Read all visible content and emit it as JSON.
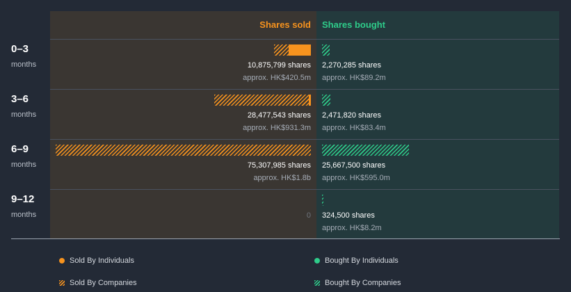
{
  "chart_data": {
    "type": "bar",
    "headers": {
      "sold": "Shares sold",
      "bought": "Shares bought"
    },
    "categories": [
      {
        "period": "0–3",
        "unit": "months"
      },
      {
        "period": "3–6",
        "unit": "months"
      },
      {
        "period": "6–9",
        "unit": "months"
      },
      {
        "period": "9–12",
        "unit": "months"
      }
    ],
    "sold": [
      {
        "shares_label": "10,875,799 shares",
        "value_label": "approx. HK$420.5m",
        "individuals": 6500000,
        "companies": 4375799
      },
      {
        "shares_label": "28,477,543 shares",
        "value_label": "approx. HK$931.3m",
        "individuals": 600000,
        "companies": 27877543
      },
      {
        "shares_label": "75,307,985 shares",
        "value_label": "approx. HK$1.8b",
        "individuals": 0,
        "companies": 75307985
      },
      {
        "shares_label": "",
        "value_label": "",
        "zero_label": "0",
        "individuals": 0,
        "companies": 0
      }
    ],
    "bought": [
      {
        "shares_label": "2,270,285 shares",
        "value_label": "approx. HK$89.2m",
        "individuals": 0,
        "companies": 2270285
      },
      {
        "shares_label": "2,471,820 shares",
        "value_label": "approx. HK$83.4m",
        "individuals": 0,
        "companies": 2471820
      },
      {
        "shares_label": "25,667,500 shares",
        "value_label": "approx. HK$595.0m",
        "individuals": 0,
        "companies": 25667500
      },
      {
        "shares_label": "324,500 shares",
        "value_label": "approx. HK$8.2m",
        "individuals": 0,
        "companies": 324500
      }
    ],
    "legend": {
      "sold_individuals": "Sold By Individuals",
      "sold_companies": "Sold By Companies",
      "bought_individuals": "Bought By Individuals",
      "bought_companies": "Bought By Companies"
    },
    "colors": {
      "sold": "#f7931e",
      "bought": "#2ecc8a"
    }
  }
}
